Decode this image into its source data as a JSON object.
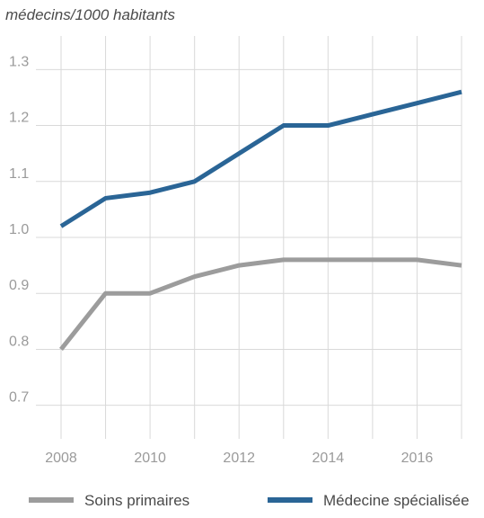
{
  "chart_data": {
    "type": "line",
    "title": "",
    "ylabel": "médecins/1000 habitants",
    "xlabel": "",
    "x": [
      2008,
      2009,
      2010,
      2011,
      2012,
      2013,
      2014,
      2015,
      2016,
      2017
    ],
    "x_ticks": [
      "2008",
      "2010",
      "2012",
      "2014",
      "2016"
    ],
    "y_ticks": [
      "0.7",
      "0.8",
      "0.9",
      "1.0",
      "1.1",
      "1.2",
      "1.3"
    ],
    "ylim": [
      0.64,
      1.36
    ],
    "xlim": [
      2008,
      2017
    ],
    "grid": true,
    "legend_position": "bottom",
    "series": [
      {
        "name": "Soins primaires",
        "color": "#9c9c9c",
        "values": [
          0.8,
          0.9,
          0.9,
          0.93,
          0.95,
          0.96,
          0.96,
          0.96,
          0.96,
          0.95
        ]
      },
      {
        "name": "Médecine spécialisée",
        "color": "#2a6596",
        "values": [
          1.02,
          1.07,
          1.08,
          1.1,
          1.15,
          1.2,
          1.2,
          1.22,
          1.24,
          1.26
        ]
      }
    ]
  }
}
